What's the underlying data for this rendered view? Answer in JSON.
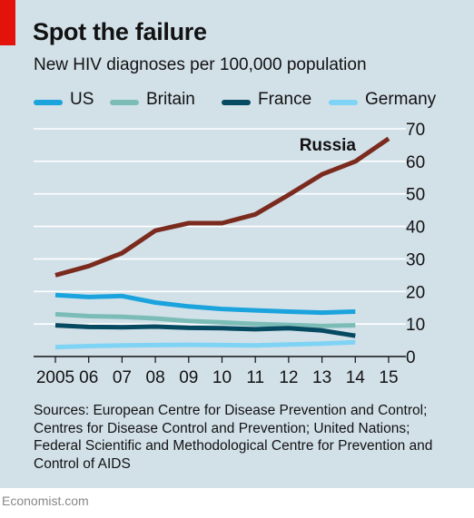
{
  "title": "Spot the failure",
  "subtitle": "New HIV diagnoses per 100,000 population",
  "legend": [
    {
      "label": "US",
      "color": "#1aa3dd"
    },
    {
      "label": "Britain",
      "color": "#7cbcb7"
    },
    {
      "label": "France",
      "color": "#064a62"
    },
    {
      "label": "Germany",
      "color": "#7fd3f5"
    }
  ],
  "sources": "Sources: European Centre for Disease Prevention and Control; Centres for Disease Control and Prevention; United Nations; Federal Scientific and Methodological Centre for Prevention and Control of AIDS",
  "footer": "Economist.com",
  "chart_data": {
    "type": "line",
    "title": "Spot the failure",
    "subtitle": "New HIV diagnoses per 100,000 population",
    "x": [
      2005,
      2006,
      2007,
      2008,
      2009,
      2010,
      2011,
      2012,
      2013,
      2014,
      2015
    ],
    "x_tick_labels": [
      "2005",
      "06",
      "07",
      "08",
      "09",
      "10",
      "11",
      "12",
      "13",
      "14",
      "15"
    ],
    "ylim": [
      0,
      70
    ],
    "y_ticks": [
      0,
      10,
      20,
      30,
      40,
      50,
      60,
      70
    ],
    "y_axis_side": "right",
    "grid": true,
    "legend_position": "top",
    "series": [
      {
        "name": "US",
        "color": "#1aa3dd",
        "x": [
          2005,
          2006,
          2007,
          2008,
          2009,
          2010,
          2011,
          2012,
          2013,
          2014
        ],
        "values": [
          18.9,
          18.3,
          18.6,
          16.6,
          15.4,
          14.6,
          14.2,
          13.8,
          13.5,
          13.8
        ]
      },
      {
        "name": "Britain",
        "color": "#7cbcb7",
        "x": [
          2005,
          2006,
          2007,
          2008,
          2009,
          2010,
          2011,
          2012,
          2013,
          2014
        ],
        "values": [
          13.0,
          12.4,
          12.2,
          11.7,
          10.9,
          10.5,
          10.0,
          9.7,
          9.4,
          9.6
        ]
      },
      {
        "name": "France",
        "color": "#064a62",
        "x": [
          2005,
          2006,
          2007,
          2008,
          2009,
          2010,
          2011,
          2012,
          2013,
          2014
        ],
        "values": [
          9.6,
          9.1,
          9.0,
          9.2,
          8.8,
          8.7,
          8.4,
          8.7,
          8.0,
          6.4
        ]
      },
      {
        "name": "Germany",
        "color": "#7fd3f5",
        "x": [
          2005,
          2006,
          2007,
          2008,
          2009,
          2010,
          2011,
          2012,
          2013,
          2014
        ],
        "values": [
          2.9,
          3.2,
          3.4,
          3.5,
          3.6,
          3.5,
          3.4,
          3.7,
          4.0,
          4.4
        ]
      },
      {
        "name": "Russia",
        "color": "#7b2a1e",
        "x": [
          2005,
          2006,
          2007,
          2008,
          2009,
          2010,
          2011,
          2012,
          2013,
          2014,
          2015
        ],
        "values": [
          25.0,
          27.8,
          31.8,
          38.7,
          41.0,
          41.0,
          43.7,
          49.7,
          56.0,
          60.0,
          67.0
        ],
        "label": "Russia"
      }
    ]
  }
}
